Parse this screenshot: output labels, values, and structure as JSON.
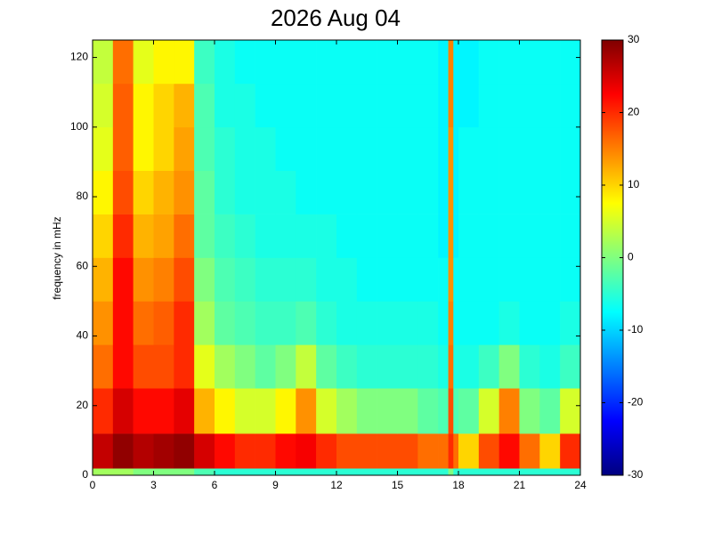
{
  "chart_data": {
    "type": "heatmap",
    "title": "2026 Aug 04",
    "ylabel": "frequency in mHz",
    "xlim": [
      0,
      24
    ],
    "ylim": [
      0,
      125
    ],
    "xticks": [
      0,
      3,
      6,
      9,
      12,
      15,
      18,
      21,
      24
    ],
    "yticks": [
      0,
      20,
      40,
      60,
      80,
      100,
      120
    ],
    "colormap": "jet",
    "clim": [
      -30,
      30
    ],
    "cticks": [
      -30,
      -20,
      -10,
      0,
      10,
      20,
      30
    ],
    "xbins": [
      0,
      1,
      2,
      3,
      4,
      5,
      6,
      7,
      8,
      9,
      10,
      11,
      12,
      13,
      14,
      15,
      16,
      17,
      17.5,
      17.75,
      18,
      19,
      20,
      21,
      22,
      23,
      24
    ],
    "ybins": [
      0,
      2,
      12,
      25,
      37.5,
      50,
      62.5,
      75,
      87.5,
      100,
      112.5,
      125
    ],
    "z": [
      [
        2,
        2,
        0,
        0,
        0,
        -3,
        -5,
        -5,
        -5,
        -5,
        -5,
        -5,
        -5,
        -5,
        -5,
        -5,
        -5,
        -5,
        0,
        -5,
        -5,
        -5,
        -5,
        -5,
        -5,
        -5
      ],
      [
        26,
        29,
        27,
        28,
        29,
        25,
        22,
        20,
        20,
        22,
        23,
        20,
        18,
        18,
        18,
        18,
        16,
        16,
        20,
        16,
        10,
        18,
        22,
        16,
        10,
        20
      ],
      [
        20,
        25,
        22,
        22,
        24,
        12,
        8,
        5,
        5,
        8,
        14,
        5,
        2,
        0,
        0,
        0,
        -2,
        -3,
        18,
        -3,
        -2,
        5,
        15,
        0,
        -2,
        5
      ],
      [
        16,
        22,
        18,
        18,
        20,
        6,
        2,
        0,
        -2,
        0,
        4,
        -2,
        -4,
        -5,
        -5,
        -5,
        -5,
        -6,
        16,
        -6,
        -6,
        -4,
        0,
        -5,
        -6,
        -4
      ],
      [
        14,
        22,
        16,
        17,
        20,
        2,
        -2,
        -3,
        -4,
        -4,
        -3,
        -5,
        -6,
        -6,
        -6,
        -6,
        -6,
        -7,
        15,
        -7,
        -7,
        -7,
        -6,
        -7,
        -7,
        -6
      ],
      [
        12,
        22,
        14,
        15,
        18,
        0,
        -3,
        -4,
        -5,
        -5,
        -5,
        -6,
        -6,
        -7,
        -7,
        -7,
        -7,
        -7,
        14,
        -7,
        -7,
        -7,
        -7,
        -7,
        -7,
        -7
      ],
      [
        10,
        20,
        12,
        13,
        16,
        -2,
        -4,
        -5,
        -6,
        -6,
        -6,
        -6,
        -7,
        -7,
        -7,
        -7,
        -7,
        -8,
        14,
        -8,
        -7,
        -7,
        -7,
        -7,
        -7,
        -7
      ],
      [
        8,
        18,
        10,
        12,
        14,
        -2,
        -5,
        -6,
        -6,
        -6,
        -7,
        -7,
        -7,
        -7,
        -7,
        -7,
        -7,
        -8,
        14,
        -8,
        -7,
        -7,
        -7,
        -7,
        -7,
        -7
      ],
      [
        6,
        17,
        8,
        10,
        13,
        -3,
        -5,
        -6,
        -6,
        -7,
        -7,
        -7,
        -7,
        -7,
        -7,
        -7,
        -7,
        -8,
        14,
        -8,
        -7,
        -7,
        -7,
        -7,
        -7,
        -7
      ],
      [
        5,
        17,
        8,
        10,
        12,
        -3,
        -6,
        -6,
        -7,
        -7,
        -7,
        -7,
        -7,
        -7,
        -7,
        -7,
        -7,
        -8,
        15,
        -8,
        -8,
        -7,
        -7,
        -7,
        -7,
        -7
      ],
      [
        4,
        16,
        6,
        8,
        8,
        -4,
        -6,
        -7,
        -7,
        -7,
        -7,
        -7,
        -7,
        -7,
        -7,
        -7,
        -7,
        -8,
        15,
        -8,
        -8,
        -7,
        -7,
        -7,
        -7,
        -7
      ]
    ]
  }
}
